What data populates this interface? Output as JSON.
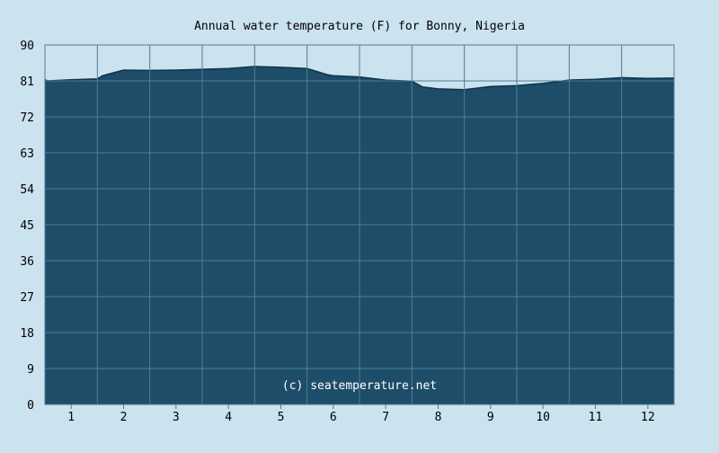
{
  "chart_data": {
    "type": "area",
    "title": "Annual water temperature (F) for Bonny, Nigeria",
    "xlabel": "",
    "ylabel": "",
    "x_categories": [
      "1",
      "2",
      "3",
      "4",
      "5",
      "6",
      "7",
      "8",
      "9",
      "10",
      "11",
      "12"
    ],
    "ylim": [
      0,
      90
    ],
    "yticks": [
      0,
      9,
      18,
      27,
      36,
      45,
      54,
      63,
      72,
      81,
      90
    ],
    "grid": true,
    "legend": "none",
    "watermark": "(c) seatemperature.net",
    "colors": {
      "background": "#cbe2ef",
      "fill": "#1d4d68",
      "outline": "#0f3349",
      "grid": "#4f7d96",
      "text": "#000000"
    },
    "series": [
      {
        "x": [
          0.5,
          0.55,
          1.0,
          1.5,
          1.6,
          2.0,
          2.5,
          3.0,
          3.5,
          4.0,
          4.5,
          5.0,
          5.5,
          5.9,
          6.0,
          6.5,
          7.0,
          7.5,
          7.7,
          8.0,
          8.5,
          9.0,
          9.5,
          10.0,
          10.5,
          11.0,
          11.5,
          12.0,
          12.5
        ],
        "y": [
          81.3,
          81.0,
          81.3,
          81.5,
          82.3,
          83.7,
          83.6,
          83.7,
          83.9,
          84.1,
          84.6,
          84.4,
          84.1,
          82.5,
          82.3,
          82.0,
          81.2,
          80.9,
          79.5,
          79.0,
          78.8,
          79.6,
          79.8,
          80.4,
          81.2,
          81.4,
          81.8,
          81.6,
          81.7
        ]
      }
    ]
  }
}
